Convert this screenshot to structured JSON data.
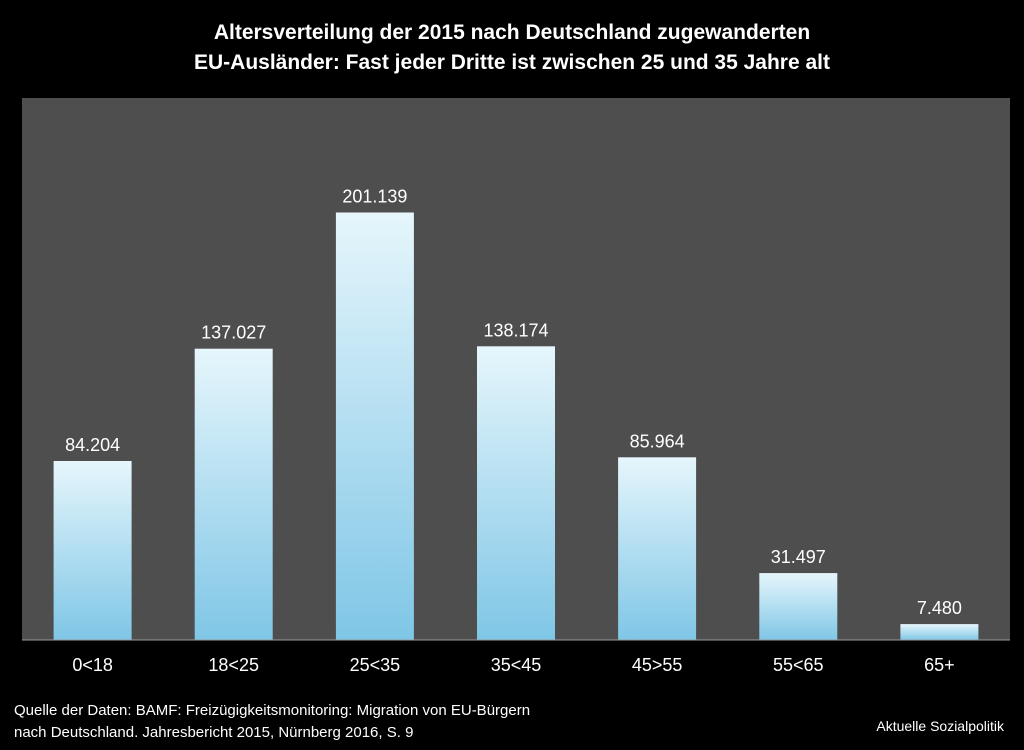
{
  "title": {
    "line1": "Altersverteilung der 2015 nach Deutschland  zugewanderten",
    "line2": "EU-Ausländer: Fast jeder Dritte ist zwischen 25 und 35 Jahre alt"
  },
  "chart_data": {
    "type": "bar",
    "categories": [
      "0<18",
      "18<25",
      "25<35",
      "35<45",
      "45>55",
      "55<65",
      "65+"
    ],
    "values": [
      84204,
      137027,
      201139,
      138174,
      85964,
      31497,
      7480
    ],
    "data_labels": [
      "84.204",
      "137.027",
      "201.139",
      "138.174",
      "85.964",
      "31.497",
      "7.480"
    ],
    "title": "Altersverteilung der 2015 nach Deutschland  zugewanderten EU-Ausländer: Fast jeder Dritte ist zwischen 25 und 35 Jahre alt",
    "xlabel": "",
    "ylabel": "",
    "ylim": [
      0,
      215000
    ],
    "grid": false,
    "colors": {
      "bar_top": "#e6f6fc",
      "bar_bottom": "#7fc6e6",
      "plot_bg": "#4e4e4e",
      "page_bg": "#000000"
    }
  },
  "source": {
    "line1": "Quelle der Daten: BAMF: Freizügigkeitsmonitoring: Migration von EU-Bürgern",
    "line2": "nach Deutschland. Jahresbericht 2015, Nürnberg 2016, S. 9"
  },
  "brand": "Aktuelle Sozialpolitik"
}
